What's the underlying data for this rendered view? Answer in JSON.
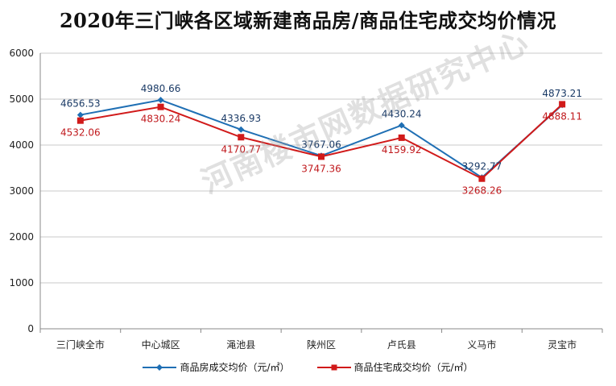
{
  "chart_data": {
    "type": "line",
    "title": "2020年三门峡各区域新建商品房/商品住宅成交均价情况",
    "categories": [
      "三门峡全市",
      "中心城区",
      "渑池县",
      "陕州区",
      "卢氏县",
      "义马市",
      "灵宝市"
    ],
    "series": [
      {
        "name": "商品房成交均价（元/㎡）",
        "values": [
          4656.53,
          4980.66,
          4336.93,
          3767.06,
          4430.24,
          3292.77,
          4873.21
        ],
        "labels": [
          "4656.53",
          "4980.66",
          "4336.93",
          "3767.06",
          "4430.24",
          "3292.77",
          "4873.21"
        ],
        "color": "#1f6fb4",
        "marker": "diamond",
        "label_pos": "above"
      },
      {
        "name": "商品住宅成交均价（元/㎡）",
        "values": [
          4532.06,
          4830.24,
          4170.77,
          3747.36,
          4159.92,
          3268.26,
          4888.11
        ],
        "labels": [
          "4532.06",
          "4830.24",
          "4170.77",
          "3747.36",
          "4159.92",
          "3268.26",
          "4888.11"
        ],
        "color": "#d11a1a",
        "marker": "square",
        "label_pos": "below"
      }
    ],
    "ylim": [
      0,
      6000
    ],
    "yticks": [
      "0",
      "1000",
      "2000",
      "3000",
      "4000",
      "5000",
      "6000"
    ],
    "grid": true,
    "legend": "bottom"
  },
  "watermark": "河南楼市网数据研究中心"
}
